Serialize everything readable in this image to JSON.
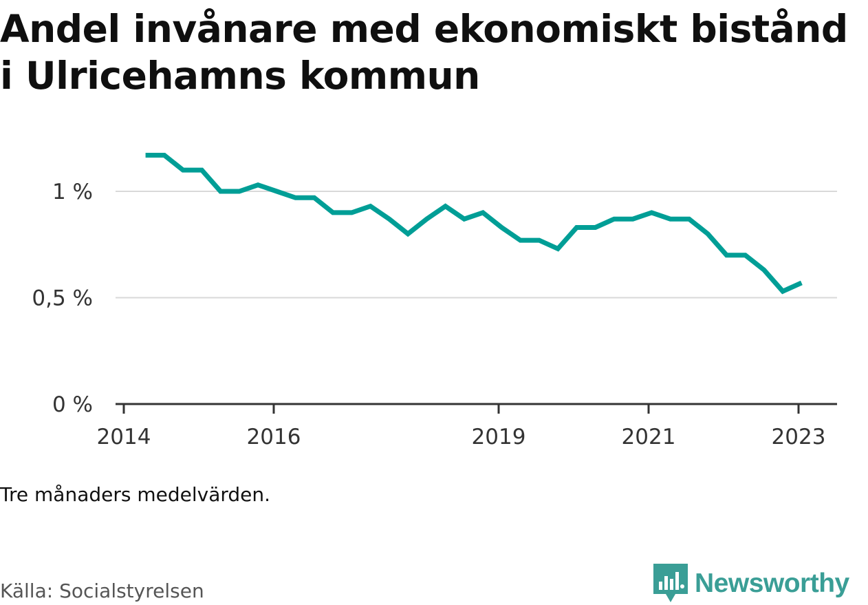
{
  "title": "Andel invånare med ekonomiskt bistånd i Ulricehamns kommun",
  "note": "Tre månaders medelvärden.",
  "source": "Källa: Socialstyrelsen",
  "brand": {
    "name": "Newsworthy",
    "icon": "newsworthy-logo-icon",
    "color": "#3a9e96"
  },
  "chart_data": {
    "type": "line",
    "title": "Andel invånare med ekonomiskt bistånd i Ulricehamns kommun",
    "xlabel": "",
    "ylabel": "",
    "ylim": [
      0,
      1.25
    ],
    "xlim": [
      2014.0,
      2023.5
    ],
    "grid": true,
    "y_ticks": [
      {
        "value": 0,
        "label": "0 %"
      },
      {
        "value": 0.5,
        "label": "0,5 %"
      },
      {
        "value": 1,
        "label": "1 %"
      }
    ],
    "x_ticks": [
      {
        "value": 2014.0,
        "label": "2014"
      },
      {
        "value": 2016.0,
        "label": "2016"
      },
      {
        "value": 2019.0,
        "label": "2019"
      },
      {
        "value": 2021.0,
        "label": "2021"
      },
      {
        "value": 2023.0,
        "label": "2023"
      }
    ],
    "series": [
      {
        "name": "Andel invånare med ekonomiskt bistånd",
        "color": "#009e96",
        "x": [
          2014.29,
          2014.54,
          2014.79,
          2015.04,
          2015.29,
          2015.54,
          2015.79,
          2016.04,
          2016.29,
          2016.54,
          2016.79,
          2017.04,
          2017.29,
          2017.54,
          2017.79,
          2018.04,
          2018.29,
          2018.54,
          2018.79,
          2019.04,
          2019.29,
          2019.54,
          2019.79,
          2020.04,
          2020.29,
          2020.54,
          2020.79,
          2021.04,
          2021.29,
          2021.54,
          2021.79,
          2022.04,
          2022.29,
          2022.54,
          2022.79,
          2023.04
        ],
        "values": [
          1.17,
          1.17,
          1.1,
          1.1,
          1.0,
          1.0,
          1.03,
          1.0,
          0.97,
          0.97,
          0.9,
          0.9,
          0.93,
          0.87,
          0.8,
          0.87,
          0.93,
          0.87,
          0.9,
          0.83,
          0.77,
          0.77,
          0.73,
          0.83,
          0.83,
          0.87,
          0.87,
          0.9,
          0.87,
          0.87,
          0.8,
          0.7,
          0.7,
          0.63,
          0.53,
          0.57
        ]
      }
    ]
  }
}
